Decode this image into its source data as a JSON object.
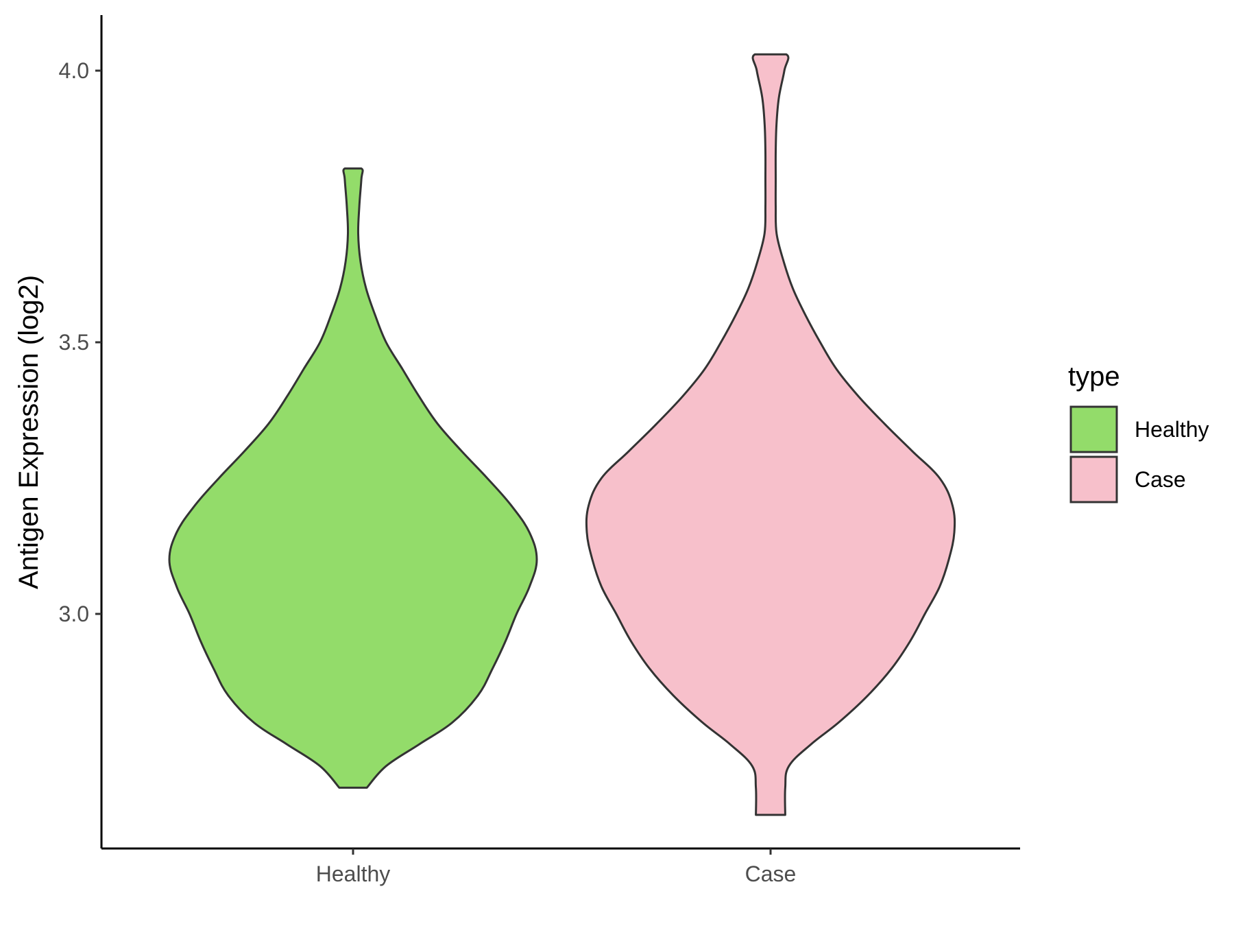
{
  "chart_data": {
    "type": "violin",
    "title": "",
    "xlabel": "",
    "ylabel": "Antigen Expression (log2)",
    "categories": [
      "Healthy",
      "Case"
    ],
    "y_ticks": [
      "3.0",
      "3.5",
      "4.0"
    ],
    "y_tick_values": [
      3.0,
      3.5,
      4.0
    ],
    "ylim": [
      2.58,
      4.1
    ],
    "grid": false,
    "legend": {
      "title": "type",
      "position": "right",
      "items": [
        {
          "label": "Healthy",
          "color": "#93DC6A"
        },
        {
          "label": "Case",
          "color": "#F7C0CB"
        }
      ]
    },
    "series": [
      {
        "category": "Healthy",
        "color": "#93DC6A",
        "min": 2.68,
        "max": 3.82,
        "density_profile": [
          [
            2.68,
            0.075
          ],
          [
            2.72,
            0.18
          ],
          [
            2.76,
            0.36
          ],
          [
            2.8,
            0.54
          ],
          [
            2.85,
            0.68
          ],
          [
            2.9,
            0.76
          ],
          [
            2.95,
            0.83
          ],
          [
            3.0,
            0.89
          ],
          [
            3.05,
            0.96
          ],
          [
            3.1,
            1.0
          ],
          [
            3.15,
            0.96
          ],
          [
            3.2,
            0.86
          ],
          [
            3.25,
            0.73
          ],
          [
            3.3,
            0.59
          ],
          [
            3.35,
            0.46
          ],
          [
            3.4,
            0.36
          ],
          [
            3.45,
            0.27
          ],
          [
            3.5,
            0.18
          ],
          [
            3.55,
            0.12
          ],
          [
            3.6,
            0.07
          ],
          [
            3.65,
            0.04
          ],
          [
            3.7,
            0.028
          ],
          [
            3.75,
            0.034
          ],
          [
            3.8,
            0.045
          ],
          [
            3.82,
            0.045
          ]
        ]
      },
      {
        "category": "Case",
        "color": "#F7C0CB",
        "min": 2.63,
        "max": 4.03,
        "density_profile": [
          [
            2.63,
            0.08
          ],
          [
            2.68,
            0.08
          ],
          [
            2.72,
            0.1
          ],
          [
            2.76,
            0.22
          ],
          [
            2.8,
            0.37
          ],
          [
            2.85,
            0.53
          ],
          [
            2.9,
            0.66
          ],
          [
            2.95,
            0.76
          ],
          [
            3.0,
            0.84
          ],
          [
            3.05,
            0.92
          ],
          [
            3.1,
            0.97
          ],
          [
            3.15,
            1.0
          ],
          [
            3.2,
            0.99
          ],
          [
            3.25,
            0.92
          ],
          [
            3.3,
            0.77
          ],
          [
            3.35,
            0.62
          ],
          [
            3.4,
            0.48
          ],
          [
            3.45,
            0.36
          ],
          [
            3.5,
            0.27
          ],
          [
            3.55,
            0.19
          ],
          [
            3.6,
            0.12
          ],
          [
            3.65,
            0.07
          ],
          [
            3.7,
            0.033
          ],
          [
            3.75,
            0.028
          ],
          [
            3.8,
            0.028
          ],
          [
            3.85,
            0.028
          ],
          [
            3.9,
            0.032
          ],
          [
            3.95,
            0.045
          ],
          [
            4.0,
            0.075
          ],
          [
            4.03,
            0.085
          ]
        ]
      }
    ]
  }
}
